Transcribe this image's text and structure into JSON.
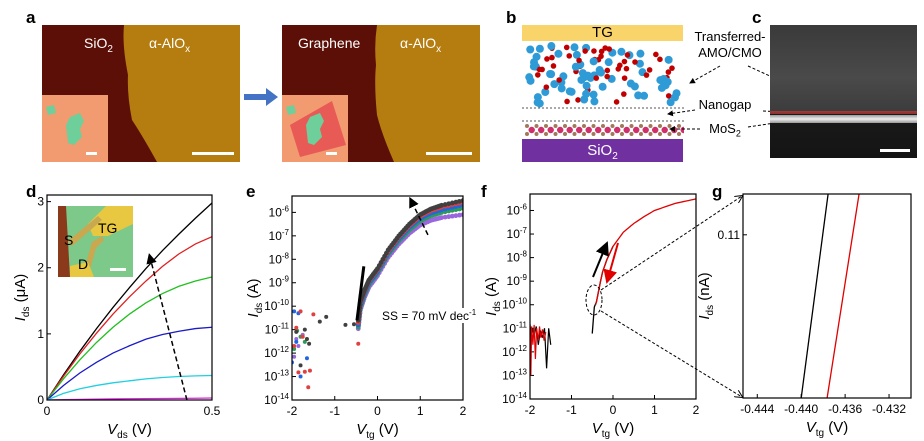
{
  "panels": {
    "a": {
      "label": "a",
      "left_label": "SiO",
      "left_sub": "2",
      "right_label": "α-AlO",
      "right_sub": "x",
      "after_left_label": "Graphene",
      "after_right_label": "α-AlO",
      "after_right_sub": "x"
    },
    "b": {
      "label": "b",
      "top_gate": "TG",
      "substrate": "SiO",
      "substrate_sub": "2",
      "annot_transferred_1": "Transferred-",
      "annot_transferred_2": "AMO/CMO",
      "annot_nanogap": "Nanogap",
      "annot_mos2": "MoS",
      "annot_mos2_sub": "2"
    },
    "c": {
      "label": "c"
    },
    "d": {
      "label": "d",
      "inset_s": "S",
      "inset_tg": "TG",
      "inset_d": "D"
    },
    "e": {
      "label": "e",
      "annotation": "SS = 70 mV dec",
      "annotation_sup": "-1"
    },
    "f": {
      "label": "f"
    },
    "g": {
      "label": "g"
    }
  },
  "colors": {
    "arrow_blue": "#4472c4",
    "tg_yellow": "#f9d46b",
    "sio2_purple": "#7030a0",
    "atom_blue": "#2e9bd6",
    "atom_red": "#c00000"
  },
  "chart_data": [
    {
      "id": "d",
      "type": "line",
      "xlabel": "V",
      "xlabel_sub": "ds",
      "xlabel_unit": " (V)",
      "ylabel": "I",
      "ylabel_sub": "ds",
      "ylabel_unit": " (μA)",
      "xlim": [
        0,
        0.5
      ],
      "ylim": [
        0,
        3.1
      ],
      "xticks": [
        0,
        0.5
      ],
      "xtick_labels": [
        "0",
        "0.5"
      ],
      "yticks": [
        0,
        1,
        2,
        3
      ],
      "ytick_labels": [
        "0",
        "1",
        "2",
        "3"
      ],
      "x": [
        0,
        0.05,
        0.1,
        0.15,
        0.2,
        0.25,
        0.3,
        0.35,
        0.4,
        0.45,
        0.5
      ],
      "series": [
        {
          "color": "#000000",
          "values": [
            0,
            0.38,
            0.74,
            1.08,
            1.4,
            1.7,
            1.99,
            2.26,
            2.51,
            2.75,
            2.98
          ]
        },
        {
          "color": "#e02020",
          "values": [
            0,
            0.36,
            0.7,
            1.01,
            1.3,
            1.56,
            1.8,
            2.02,
            2.21,
            2.36,
            2.47
          ]
        },
        {
          "color": "#20c020",
          "values": [
            0,
            0.32,
            0.61,
            0.87,
            1.1,
            1.3,
            1.47,
            1.61,
            1.72,
            1.8,
            1.86
          ]
        },
        {
          "color": "#1a1ac8",
          "values": [
            0,
            0.22,
            0.41,
            0.57,
            0.71,
            0.82,
            0.92,
            0.99,
            1.04,
            1.08,
            1.1
          ]
        },
        {
          "color": "#20d0e0",
          "values": [
            0,
            0.1,
            0.17,
            0.22,
            0.26,
            0.29,
            0.32,
            0.34,
            0.355,
            0.365,
            0.37
          ]
        },
        {
          "color": "#e020e0",
          "values": [
            0,
            0.005,
            0.01,
            0.013,
            0.016,
            0.019,
            0.021,
            0.023,
            0.025,
            0.027,
            0.03
          ]
        }
      ],
      "dashed_arrow": {
        "from": [
          0.424,
          0
        ],
        "to": [
          0.31,
          2.2
        ]
      }
    },
    {
      "id": "e",
      "type": "scatter",
      "yscale": "log",
      "xlabel": "V",
      "xlabel_sub": "tg",
      "xlabel_unit": " (V)",
      "ylabel": "I",
      "ylabel_sub": "ds",
      "ylabel_unit": " (A)",
      "xlim": [
        -2,
        2
      ],
      "ylim": [
        1e-14,
        5e-06
      ],
      "xticks": [
        -2,
        -1,
        0,
        1,
        2
      ],
      "xtick_labels": [
        "-2",
        "-1",
        "0",
        "1",
        "2"
      ],
      "yticks": [
        -14,
        -13,
        -12,
        -11,
        -10,
        -9,
        -8,
        -7,
        -6
      ],
      "x": [
        -0.45,
        -0.4,
        -0.3,
        -0.2,
        0,
        0.25,
        0.5,
        0.75,
        1,
        1.25,
        1.5,
        2
      ],
      "series": [
        {
          "color": "#9966dd",
          "values": [
            1.1e-11,
            7e-11,
            2.5e-10,
            6.5e-10,
            2e-09,
            1.2e-08,
            4.5e-08,
            1.3e-07,
            2.9e-07,
            4.6e-07,
            6e-07,
            8e-07
          ],
          "noise": [
            [
              -1.95,
              7e-13
            ],
            [
              -1.85,
              2e-12
            ],
            [
              -1.75,
              6e-12
            ],
            [
              -1.9,
              4e-12
            ]
          ]
        },
        {
          "color": "#2e9a5a",
          "values": [
            1.3e-11,
            9e-11,
            3.2e-10,
            8.5e-10,
            2.6e-09,
            1.6e-08,
            6.2e-08,
            1.8e-07,
            4.4e-07,
            7.3e-07,
            1e-06,
            1.5e-06
          ],
          "noise": [
            [
              -1.95,
              1.5e-12
            ],
            [
              -1.8,
              5e-12
            ],
            [
              -1.7,
              3e-12
            ],
            [
              -1.88,
              9e-12
            ]
          ]
        },
        {
          "color": "#2266dd",
          "values": [
            1.6e-11,
            1.1e-10,
            3.8e-10,
            1e-09,
            3e-09,
            1.9e-08,
            7.5e-08,
            2.3e-07,
            5.6e-07,
            9.5e-07,
            1.3e-06,
            2.1e-06
          ],
          "noise": [
            [
              -1.95,
              6e-11
            ],
            [
              -1.85,
              5e-11
            ],
            [
              -1.8,
              1e-13
            ],
            [
              -1.65,
              6e-13
            ],
            [
              -2,
              4e-13
            ],
            [
              -1.9,
              3e-12
            ]
          ]
        },
        {
          "color": "#e04040",
          "values": [
            2e-11,
            1.4e-10,
            4.5e-10,
            1.2e-09,
            3.6e-09,
            2.2e-08,
            9e-08,
            2.8e-07,
            7e-07,
            1.2e-06,
            1.7e-06,
            2.7e-06
          ],
          "noise": [
            [
              -1.8,
              6e-11
            ],
            [
              -1.5,
              4.5e-11
            ],
            [
              -1.62,
              3.5e-14
            ],
            [
              -1.85,
              1.5e-13
            ],
            [
              -1.7,
              1.6e-13
            ],
            [
              -1.58,
              1.8e-13
            ],
            [
              -1.75,
              5e-12
            ],
            [
              -1.9,
              1.2e-11
            ],
            [
              -0.45,
              2.5e-12
            ],
            [
              -1.95,
              2e-12
            ]
          ]
        },
        {
          "color": "#404040",
          "values": [
            2.5e-11,
            1.6e-10,
            5e-10,
            1.3e-09,
            4e-09,
            2.5e-08,
            1e-07,
            3.2e-07,
            8e-07,
            1.4e-06,
            2e-06,
            3.2e-06
          ],
          "noise": [
            [
              -1.2,
              3.5e-11
            ],
            [
              -1.35,
              2.2e-11
            ],
            [
              -0.75,
              1.6e-11
            ],
            [
              -1.6,
              2.5e-12
            ],
            [
              -1.8,
              3e-13
            ],
            [
              -1.9,
              8e-12
            ],
            [
              -1.7,
              1e-11
            ],
            [
              -1.65,
              4e-12
            ],
            [
              -0.55,
              1.7e-11
            ]
          ]
        }
      ],
      "ss_line": {
        "from": [
          -0.48,
          2.5e-11
        ],
        "to": [
          -0.32,
          5e-09
        ]
      },
      "dashed_arrow": {
        "from": [
          1.18,
          1.1e-07
        ],
        "to": [
          0.76,
          4e-06
        ]
      }
    },
    {
      "id": "f",
      "type": "line",
      "yscale": "log",
      "xlabel": "V",
      "xlabel_sub": "tg",
      "xlabel_unit": " (V)",
      "ylabel": "I",
      "ylabel_sub": "ds",
      "ylabel_unit": " (A)",
      "xlim": [
        -2,
        2
      ],
      "ylim": [
        1e-14,
        5e-06
      ],
      "xticks": [
        -2,
        -1,
        0,
        1,
        2
      ],
      "xtick_labels": [
        "-2",
        "-1",
        "0",
        "1",
        "2"
      ],
      "yticks": [
        -14,
        -13,
        -12,
        -11,
        -10,
        -9,
        -8,
        -7,
        -6
      ],
      "series": [
        {
          "name_hidden": "forward",
          "color": "#000000",
          "x": [
            -0.5,
            -0.45,
            -0.4,
            -0.3,
            -0.25,
            -0.15,
            0
          ],
          "values": [
            6e-12,
            8e-11,
            1.3e-10,
            1e-09,
            2.5e-09,
            8e-09,
            3e-08
          ],
          "noise_x": [
            -2,
            -1.97,
            -1.94,
            -1.9,
            -1.85,
            -1.8,
            -1.75,
            -1.7,
            -1.65,
            -1.6,
            -1.55,
            -1.5
          ],
          "noise_values": [
            1.5e-11,
            3e-12,
            1e-11,
            5e-12,
            1.2e-11,
            2e-12,
            8e-12,
            4e-12,
            1e-11,
            2e-13,
            1e-11,
            2e-12
          ]
        },
        {
          "name_hidden": "reverse",
          "color": "#e00000",
          "x": [
            -0.42,
            -0.4,
            -0.3,
            -0.25,
            -0.15,
            0,
            0.25,
            0.5,
            0.75,
            1,
            1.5,
            2
          ],
          "values": [
            1e-10,
            1.3e-10,
            1e-09,
            2.5e-09,
            8e-09,
            3e-08,
            1.2e-07,
            2.8e-07,
            5.5e-07,
            1e-06,
            2e-06,
            3.1e-06
          ],
          "noise_x": [
            -2,
            -1.98,
            -1.96,
            -1.93,
            -1.9,
            -1.87,
            -1.84,
            -1.8,
            -1.77,
            -1.74,
            -1.7,
            -1.66,
            -1.62
          ],
          "noise_values": [
            1e-11,
            1e-13,
            1.2e-11,
            2e-12,
            1.4e-11,
            5e-13,
            1e-11,
            3e-12,
            1.2e-11,
            4e-12,
            9e-12,
            3e-12,
            7e-12
          ]
        }
      ]
    },
    {
      "id": "g",
      "type": "line",
      "xlabel": "V",
      "xlabel_sub": "tg",
      "xlabel_unit": " (V)",
      "ylabel": "I",
      "ylabel_sub": "ds",
      "ylabel_unit": " (nA)",
      "xlim": [
        -0.4453,
        -0.43
      ],
      "ylim": [
        0.102,
        0.112
      ],
      "xticks": [
        -0.444,
        -0.44,
        -0.436,
        -0.432
      ],
      "xtick_labels": [
        "-0.444",
        "-0.440",
        "-0.436",
        "-0.432"
      ],
      "yticks": [
        0.11
      ],
      "ytick_labels": [
        "0.11"
      ],
      "series": [
        {
          "color": "#000000",
          "x": [
            -0.44,
            -0.43755
          ],
          "values": [
            0.102,
            0.112
          ]
        },
        {
          "color": "#e00000",
          "x": [
            -0.43764,
            -0.43473
          ],
          "values": [
            0.102,
            0.112
          ]
        }
      ]
    }
  ]
}
